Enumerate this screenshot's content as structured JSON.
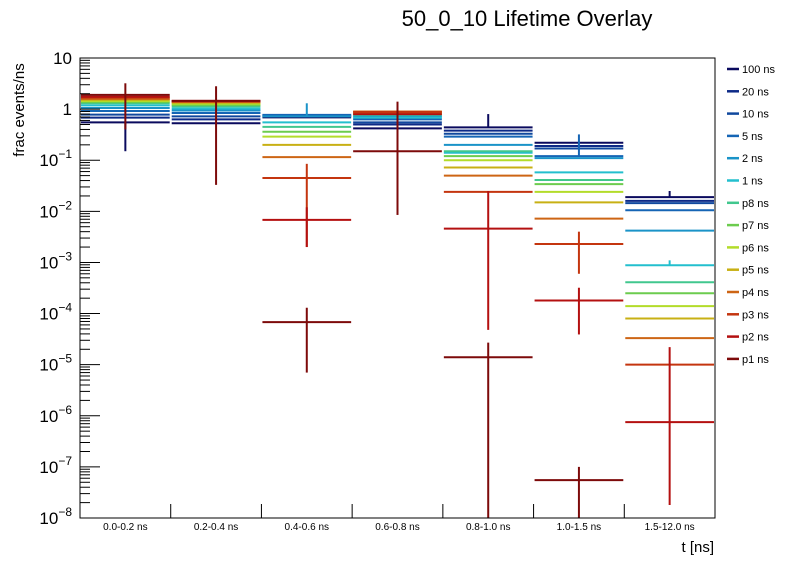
{
  "chart_data": {
    "type": "line",
    "subtype": "step-histogram-with-error-bars",
    "title": "50_0_10 Lifetime Overlay",
    "xlabel": "t [ns]",
    "ylabel": "frac events/ns",
    "yscale": "log",
    "ylim": [
      1e-08,
      10
    ],
    "ytick_labels": [
      {
        "base": "10",
        "exp": "",
        "value": 10
      },
      {
        "base": "1",
        "exp": "",
        "value": 1
      },
      {
        "base": "10",
        "exp": "−1",
        "value": 0.1
      },
      {
        "base": "10",
        "exp": "−2",
        "value": 0.01
      },
      {
        "base": "10",
        "exp": "−3",
        "value": 0.001
      },
      {
        "base": "10",
        "exp": "−4",
        "value": 0.0001
      },
      {
        "base": "10",
        "exp": "−5",
        "value": 1e-05
      },
      {
        "base": "10",
        "exp": "−6",
        "value": 1e-06
      },
      {
        "base": "10",
        "exp": "−7",
        "value": 1e-07
      },
      {
        "base": "10",
        "exp": "−8",
        "value": 1e-08
      }
    ],
    "categories": [
      "0.0-0.2 ns",
      "0.2-0.4 ns",
      "0.4-0.6 ns",
      "0.6-0.8 ns",
      "0.8-1.0 ns",
      "1.0-1.5 ns",
      "1.5-12.0 ns"
    ],
    "grid": false,
    "legend_position": "right",
    "series": [
      {
        "name": "100 ns",
        "color": "#0a0a5e",
        "values": [
          0.55,
          0.53,
          0.69,
          0.42,
          0.44,
          0.22,
          0.019
        ],
        "err_lo": [
          0.15,
          null,
          null,
          null,
          null,
          null,
          null
        ],
        "err_hi": [
          null,
          null,
          null,
          null,
          0.8,
          null,
          0.025
        ]
      },
      {
        "name": "20 ns",
        "color": "#0d2a87",
        "values": [
          0.68,
          0.63,
          0.72,
          0.5,
          0.38,
          0.19,
          0.016
        ],
        "err_lo": [],
        "err_hi": []
      },
      {
        "name": "10 ns",
        "color": "#10489e",
        "values": [
          0.78,
          0.72,
          0.76,
          0.55,
          0.33,
          0.17,
          0.0145
        ],
        "err_lo": [],
        "err_hi": []
      },
      {
        "name": "5 ns",
        "color": "#1565b5",
        "values": [
          0.92,
          0.84,
          0.77,
          0.63,
          0.29,
          0.12,
          0.0105
        ],
        "err_lo": [],
        "err_hi": [
          null,
          null,
          null,
          null,
          null,
          0.32,
          null
        ]
      },
      {
        "name": "2 ns",
        "color": "#1a93c8",
        "values": [
          1.05,
          0.94,
          0.72,
          0.72,
          0.2,
          0.11,
          0.0042
        ],
        "err_lo": [],
        "err_hi": [
          null,
          null,
          1.3,
          null,
          null,
          null,
          null
        ]
      },
      {
        "name": "1 ns",
        "color": "#23bfce",
        "values": [
          1.18,
          1.03,
          0.55,
          0.68,
          0.14,
          0.058,
          0.00088
        ],
        "err_lo": [],
        "err_hi": [
          null,
          null,
          null,
          null,
          null,
          null,
          0.0011
        ]
      },
      {
        "name": "p8 ns",
        "color": "#41c78e",
        "values": [
          1.3,
          1.13,
          0.45,
          0.78,
          0.15,
          0.041,
          0.00041
        ],
        "err_lo": [],
        "err_hi": []
      },
      {
        "name": "p7 ns",
        "color": "#6ccc4e",
        "values": [
          1.37,
          1.2,
          0.36,
          0.8,
          0.12,
          0.034,
          0.00025
        ],
        "err_lo": [],
        "err_hi": []
      },
      {
        "name": "p6 ns",
        "color": "#b3dc2a",
        "values": [
          1.44,
          1.27,
          0.29,
          0.83,
          0.1,
          0.024,
          0.00014
        ],
        "err_lo": [],
        "err_hi": []
      },
      {
        "name": "p5 ns",
        "color": "#c8b014",
        "values": [
          1.52,
          1.33,
          0.2,
          0.86,
          0.072,
          0.015,
          8e-05
        ],
        "err_lo": [],
        "err_hi": []
      },
      {
        "name": "p4 ns",
        "color": "#cd6514",
        "values": [
          1.58,
          1.38,
          0.115,
          0.9,
          0.05,
          0.0072,
          3.3e-05
        ],
        "err_lo": [],
        "err_hi": []
      },
      {
        "name": "p3 ns",
        "color": "#c4350f",
        "values": [
          1.68,
          1.42,
          0.045,
          0.88,
          0.024,
          0.0023,
          1e-05
        ],
        "err_lo": [
          null,
          null,
          0.002,
          null,
          null,
          0.0006,
          null
        ],
        "err_hi": [
          null,
          null,
          0.085,
          null,
          null,
          0.004,
          null
        ]
      },
      {
        "name": "p2 ns",
        "color": "#b41010",
        "values": [
          1.75,
          1.45,
          0.0068,
          0.8,
          0.0046,
          0.00018,
          7.5e-07
        ],
        "err_lo": [
          null,
          null,
          0.002,
          null,
          4.8e-05,
          3.9e-05,
          1.8e-08
        ],
        "err_hi": [
          null,
          null,
          0.012,
          null,
          0.025,
          0.00032,
          2.2e-05
        ]
      },
      {
        "name": "p1 ns",
        "color": "#7d0a0a",
        "values": [
          1.9,
          1.45,
          6.8e-05,
          0.15,
          1.4e-05,
          5.5e-08,
          null
        ],
        "err_lo": [
          0.4,
          0.033,
          7e-06,
          0.0085,
          1e-08,
          1e-08,
          null
        ],
        "err_hi": [
          3.2,
          2.8,
          0.00013,
          1.4,
          2.7e-05,
          1e-07,
          null
        ]
      }
    ]
  }
}
